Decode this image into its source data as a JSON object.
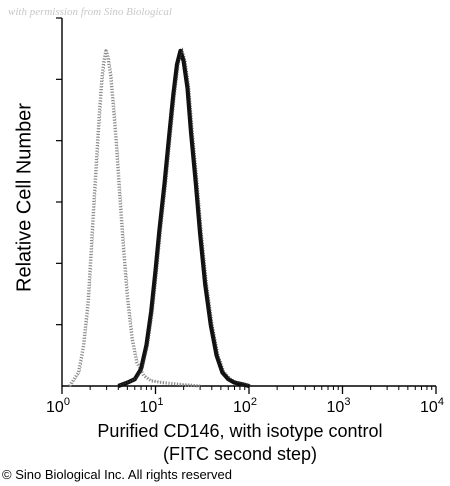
{
  "watermark": "with permission from Sino Biological",
  "copyright": "© Sino Biological Inc. All rights reserved",
  "chart_data": {
    "type": "line",
    "title": "",
    "xlabel": "Purified CD146, with isotype control",
    "xlabel_line2": "(FITC second step)",
    "ylabel": "Relative Cell Number",
    "x_scale": "log",
    "xlim": [
      1,
      10000
    ],
    "ylim": [
      0,
      100
    ],
    "x_ticks": [
      {
        "base": "10",
        "exp": "0"
      },
      {
        "base": "10",
        "exp": "1"
      },
      {
        "base": "10",
        "exp": "2"
      },
      {
        "base": "10",
        "exp": "3"
      },
      {
        "base": "10",
        "exp": "4"
      }
    ],
    "y_ticks_count": 6,
    "grid": false,
    "legend": "none",
    "series": [
      {
        "style": "dotted-gray",
        "color": "#8c8c8c",
        "x": [
          1.2,
          1.5,
          1.7,
          1.9,
          2.05,
          2.2,
          2.35,
          2.5,
          2.65,
          2.8,
          2.95,
          3.1,
          3.3,
          3.5,
          3.8,
          4.1,
          4.5,
          5.0,
          5.6,
          6.3,
          7.5,
          9.0,
          12,
          18,
          30
        ],
        "y": [
          0,
          4,
          12,
          25,
          40,
          55,
          68,
          80,
          90,
          96,
          99,
          97,
          92,
          84,
          72,
          58,
          42,
          26,
          14,
          7,
          3,
          1.5,
          1,
          0.5,
          0
        ]
      },
      {
        "style": "solid-black",
        "color": "#111111",
        "x": [
          4.0,
          5.0,
          6.0,
          7.0,
          8.0,
          9.0,
          10.0,
          11.0,
          12.5,
          14.0,
          15.5,
          17.0,
          18.5,
          20.0,
          22.0,
          24.0,
          27.0,
          30.0,
          34.0,
          39.0,
          45.0,
          52.0,
          60.0,
          70.0,
          85.0,
          100.0
        ],
        "y": [
          0,
          1,
          2,
          5,
          12,
          22,
          34,
          46,
          60,
          74,
          86,
          95,
          99,
          96,
          88,
          75,
          60,
          45,
          30,
          18,
          9,
          4,
          2,
          1,
          0.5,
          0
        ]
      }
    ]
  }
}
